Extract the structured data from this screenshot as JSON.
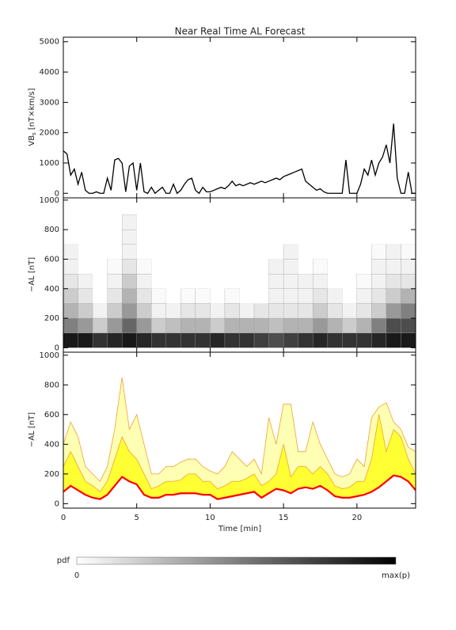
{
  "chart_data": [
    {
      "type": "line",
      "title": "Near Real Time AL Forecast",
      "ylabel": [
        "VB",
        "s",
        " [nT×km/s]"
      ],
      "x": [
        0,
        0.25,
        0.5,
        0.75,
        1,
        1.25,
        1.5,
        1.75,
        2,
        2.25,
        2.5,
        2.75,
        3,
        3.25,
        3.5,
        3.75,
        4,
        4.25,
        4.5,
        4.75,
        5,
        5.25,
        5.5,
        5.75,
        6,
        6.25,
        6.5,
        6.75,
        7,
        7.25,
        7.5,
        7.75,
        8,
        8.25,
        8.5,
        8.75,
        9,
        9.25,
        9.5,
        9.75,
        10,
        10.25,
        10.5,
        10.75,
        11,
        11.25,
        11.5,
        11.75,
        12,
        12.25,
        12.5,
        12.75,
        13,
        13.25,
        13.5,
        13.75,
        14,
        14.25,
        14.5,
        14.75,
        15,
        15.25,
        15.5,
        15.75,
        16,
        16.25,
        16.5,
        16.75,
        17,
        17.25,
        17.5,
        17.75,
        18,
        18.25,
        18.5,
        18.75,
        19,
        19.25,
        19.5,
        19.75,
        20,
        20.25,
        20.5,
        20.75,
        21,
        21.25,
        21.5,
        21.75,
        22,
        22.25,
        22.5,
        22.75,
        23,
        23.25,
        23.5,
        23.75,
        24
      ],
      "series": [
        {
          "color": "#000000",
          "values": [
            1400,
            1300,
            600,
            800,
            300,
            700,
            100,
            0,
            0,
            50,
            0,
            0,
            500,
            100,
            1100,
            1150,
            1000,
            50,
            900,
            1000,
            100,
            1000,
            50,
            0,
            200,
            0,
            100,
            200,
            0,
            0,
            300,
            0,
            100,
            300,
            450,
            500,
            100,
            0,
            200,
            50,
            50,
            100,
            150,
            200,
            150,
            250,
            400,
            250,
            300,
            250,
            300,
            350,
            300,
            350,
            400,
            350,
            400,
            450,
            500,
            450,
            550,
            600,
            650,
            700,
            750,
            800,
            400,
            300,
            200,
            100,
            150,
            50,
            0,
            0,
            0,
            0,
            0,
            1100,
            0,
            0,
            0,
            300,
            800,
            600,
            1100,
            600,
            1000,
            1200,
            1600,
            1000,
            2300,
            500,
            0,
            0,
            700,
            0,
            0
          ]
        }
      ],
      "xlim": [
        0,
        24
      ],
      "ylim": [
        -150,
        5150
      ],
      "yticks": [
        0,
        1000,
        2000,
        3000,
        4000,
        5000
      ]
    },
    {
      "type": "heatmap",
      "ylabel": "−AL [nT]",
      "xlim": [
        0,
        24
      ],
      "ylim": [
        -30,
        1015
      ],
      "yticks": [
        0,
        200,
        400,
        600,
        800,
        1000
      ],
      "xbins": [
        0,
        1,
        2,
        3,
        4,
        5,
        6,
        7,
        8,
        9,
        10,
        11,
        12,
        13,
        14,
        15,
        16,
        17,
        18,
        19,
        20,
        21,
        22,
        23,
        24
      ],
      "ybins": [
        0,
        100,
        200,
        300,
        400,
        500,
        600,
        700,
        800,
        900
      ],
      "z": [
        [
          0.9,
          0.5,
          0.3,
          0.2,
          0.1,
          0.05,
          0.05,
          0,
          0
        ],
        [
          0.9,
          0.4,
          0.2,
          0.1,
          0.05,
          0,
          0,
          0,
          0
        ],
        [
          0.8,
          0.2,
          0.05,
          0,
          0,
          0,
          0,
          0,
          0
        ],
        [
          0.85,
          0.4,
          0.2,
          0.1,
          0.05,
          0.02,
          0,
          0,
          0
        ],
        [
          0.9,
          0.6,
          0.4,
          0.3,
          0.2,
          0.1,
          0.05,
          0.05,
          0.05
        ],
        [
          0.85,
          0.4,
          0.2,
          0.1,
          0.05,
          0.02,
          0,
          0,
          0
        ],
        [
          0.8,
          0.2,
          0.05,
          0.02,
          0,
          0,
          0,
          0,
          0
        ],
        [
          0.8,
          0.25,
          0.05,
          0,
          0,
          0,
          0,
          0,
          0
        ],
        [
          0.8,
          0.3,
          0.1,
          0.02,
          0,
          0,
          0,
          0,
          0
        ],
        [
          0.8,
          0.3,
          0.1,
          0.02,
          0,
          0,
          0,
          0,
          0
        ],
        [
          0.85,
          0.2,
          0.05,
          0,
          0,
          0,
          0,
          0,
          0
        ],
        [
          0.8,
          0.3,
          0.1,
          0.02,
          0,
          0,
          0,
          0,
          0
        ],
        [
          0.8,
          0.3,
          0.05,
          0,
          0,
          0,
          0,
          0,
          0
        ],
        [
          0.75,
          0.3,
          0.1,
          0,
          0,
          0,
          0,
          0,
          0
        ],
        [
          0.7,
          0.25,
          0.1,
          0.05,
          0.05,
          0.05,
          0,
          0,
          0
        ],
        [
          0.75,
          0.3,
          0.1,
          0.05,
          0.05,
          0.05,
          0.05,
          0,
          0
        ],
        [
          0.8,
          0.3,
          0.1,
          0.05,
          0.05,
          0,
          0,
          0,
          0
        ],
        [
          0.85,
          0.4,
          0.2,
          0.1,
          0.05,
          0.02,
          0,
          0,
          0
        ],
        [
          0.8,
          0.3,
          0.1,
          0.05,
          0,
          0,
          0,
          0,
          0
        ],
        [
          0.8,
          0.2,
          0.05,
          0,
          0,
          0,
          0,
          0,
          0
        ],
        [
          0.8,
          0.3,
          0.1,
          0.05,
          0.02,
          0,
          0,
          0,
          0
        ],
        [
          0.85,
          0.5,
          0.2,
          0.1,
          0.05,
          0.05,
          0.02,
          0,
          0
        ],
        [
          0.9,
          0.7,
          0.4,
          0.2,
          0.1,
          0.05,
          0.05,
          0,
          0
        ],
        [
          0.9,
          0.7,
          0.5,
          0.3,
          0.1,
          0.05,
          0.02,
          0,
          0
        ]
      ],
      "colorbar": {
        "label": "pdf",
        "min_label": "0",
        "max_label": "max(p)"
      }
    },
    {
      "type": "band",
      "ylabel": "−AL [nT]",
      "xlabel": "Time [min]",
      "xlim": [
        0,
        24
      ],
      "ylim": [
        -30,
        1020
      ],
      "xticks": [
        0,
        5,
        10,
        15,
        20
      ],
      "yticks": [
        0,
        200,
        400,
        600,
        800,
        1000
      ],
      "edgecolor": "#f0a030",
      "x": [
        0,
        0.5,
        1,
        1.5,
        2,
        2.5,
        3,
        3.5,
        4,
        4.5,
        5,
        5.5,
        6,
        6.5,
        7,
        7.5,
        8,
        8.5,
        9,
        9.5,
        10,
        10.5,
        11,
        11.5,
        12,
        12.5,
        13,
        13.5,
        14,
        14.5,
        15,
        15.5,
        16,
        16.5,
        17,
        17.5,
        18,
        18.5,
        19,
        19.5,
        20,
        20.5,
        21,
        21.5,
        22,
        22.5,
        23,
        23.5,
        24
      ],
      "series": [
        {
          "color": "#ff0000",
          "values": [
            80,
            120,
            90,
            60,
            40,
            30,
            60,
            120,
            180,
            150,
            130,
            60,
            40,
            40,
            60,
            60,
            70,
            70,
            70,
            60,
            60,
            30,
            40,
            50,
            60,
            70,
            80,
            40,
            70,
            100,
            90,
            70,
            100,
            110,
            100,
            120,
            90,
            50,
            40,
            40,
            50,
            60,
            80,
            110,
            150,
            190,
            180,
            150,
            90
          ]
        },
        {
          "color": "#ffff33",
          "values": [
            250,
            350,
            250,
            150,
            120,
            80,
            150,
            300,
            450,
            350,
            300,
            200,
            100,
            120,
            150,
            150,
            160,
            200,
            200,
            150,
            150,
            100,
            120,
            150,
            150,
            170,
            200,
            120,
            150,
            200,
            400,
            180,
            250,
            250,
            200,
            250,
            200,
            120,
            100,
            110,
            150,
            150,
            300,
            600,
            350,
            500,
            450,
            300,
            200
          ]
        },
        {
          "color": "#ffffb3",
          "values": [
            400,
            550,
            450,
            250,
            200,
            150,
            250,
            500,
            850,
            500,
            600,
            400,
            200,
            200,
            250,
            250,
            280,
            300,
            300,
            250,
            220,
            200,
            250,
            350,
            300,
            250,
            300,
            200,
            580,
            400,
            670,
            670,
            350,
            350,
            550,
            400,
            300,
            200,
            180,
            200,
            300,
            250,
            580,
            650,
            680,
            550,
            500,
            380,
            350
          ]
        }
      ]
    }
  ]
}
